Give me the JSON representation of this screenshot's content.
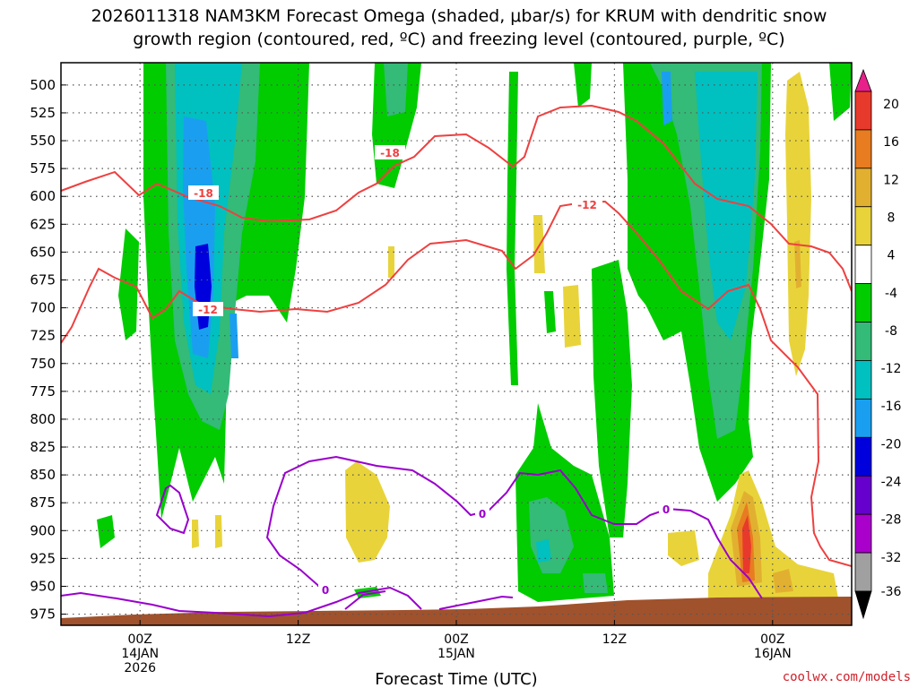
{
  "title_line1": "2026011318 NAM3KM Forecast Omega (shaded, μbar/s) for KRUM with dendritic snow",
  "title_line2": "growth region (contoured, red, ºC) and freezing level (contoured, purple, ºC)",
  "credit": "coolwx.com/models",
  "chart_data": {
    "type": "heatmap",
    "xlabel": "Forecast Time (UTC)",
    "x_ticks": [
      {
        "hours": 6,
        "lines": [
          "00Z",
          "14JAN",
          "2026"
        ]
      },
      {
        "hours": 18,
        "lines": [
          "12Z"
        ]
      },
      {
        "hours": 30,
        "lines": [
          "00Z",
          "15JAN"
        ]
      },
      {
        "hours": 42,
        "lines": [
          "12Z"
        ]
      },
      {
        "hours": 54,
        "lines": [
          "00Z",
          "16JAN"
        ]
      }
    ],
    "xlim_hours_after_init": [
      0,
      60
    ],
    "y_ticks": [
      500,
      525,
      550,
      575,
      600,
      625,
      650,
      675,
      700,
      725,
      750,
      775,
      800,
      825,
      850,
      875,
      900,
      925,
      950,
      975
    ],
    "ylim_hPa": [
      480,
      985
    ],
    "colorbar": {
      "levels": [
        20,
        16,
        12,
        8,
        4,
        -4,
        -8,
        -12,
        -16,
        -20,
        -24,
        -28,
        -32,
        -36
      ],
      "colors": [
        "#e8d43a",
        "#ffffff",
        "#00cc00",
        "#33bb77",
        "#00c0c0",
        "#1a9ff0",
        "#0000dd",
        "#6600cc",
        "#aa00cc",
        "#a0a0a0",
        "#e2b030",
        "#e87c20",
        "#e83a2c",
        "#e8208a",
        "#000000"
      ]
    },
    "contours": [
      {
        "field": "temperature",
        "color": "#ee4040",
        "labels": [
          "-18",
          "-12",
          "-18",
          "-12"
        ]
      },
      {
        "field": "freezing_level",
        "color": "#9900cc",
        "labels": [
          "0",
          "0",
          "0"
        ]
      }
    ]
  }
}
